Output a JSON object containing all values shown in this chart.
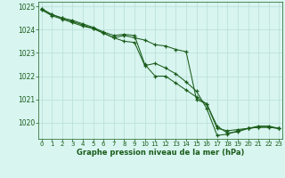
{
  "x": [
    0,
    1,
    2,
    3,
    4,
    5,
    6,
    7,
    8,
    9,
    10,
    11,
    12,
    13,
    14,
    15,
    16,
    17,
    18,
    19,
    20,
    21,
    22,
    23
  ],
  "line1": [
    1024.85,
    1024.6,
    1024.45,
    1024.3,
    1024.15,
    1024.05,
    1023.85,
    1023.65,
    1023.75,
    1023.65,
    1023.55,
    1023.35,
    1023.3,
    1023.15,
    1023.05,
    1021.0,
    1020.8,
    1019.75,
    1019.65,
    1019.7,
    1019.75,
    1019.8,
    1019.8,
    1019.75
  ],
  "line2": [
    1024.9,
    1024.65,
    1024.5,
    1024.4,
    1024.25,
    1024.1,
    1023.9,
    1023.75,
    1023.8,
    1023.75,
    1022.5,
    1022.0,
    1022.0,
    1021.7,
    1021.4,
    1021.1,
    1020.8,
    1019.85,
    1019.55,
    1019.6,
    1019.75,
    1019.85,
    1019.85,
    1019.75
  ],
  "line3": [
    1024.9,
    1024.65,
    1024.5,
    1024.35,
    1024.2,
    1024.05,
    1023.85,
    1023.65,
    1023.5,
    1023.45,
    1022.45,
    1022.55,
    1022.35,
    1022.1,
    1021.75,
    1021.35,
    1020.6,
    1019.45,
    1019.5,
    1019.65,
    1019.75,
    1019.8,
    1019.8,
    1019.75
  ],
  "line_color": "#1a5c1a",
  "bg_color": "#d8f5f0",
  "grid_color": "#b8ddd8",
  "xlabel": "Graphe pression niveau de la mer (hPa)",
  "xlabel_color": "#1a5c1a",
  "tick_color": "#1a5c1a",
  "ylim": [
    1019.3,
    1025.2
  ],
  "yticks": [
    1020,
    1021,
    1022,
    1023,
    1024,
    1025
  ],
  "xlim": [
    -0.3,
    23.3
  ],
  "xticks": [
    0,
    1,
    2,
    3,
    4,
    5,
    6,
    7,
    8,
    9,
    10,
    11,
    12,
    13,
    14,
    15,
    16,
    17,
    18,
    19,
    20,
    21,
    22,
    23
  ]
}
